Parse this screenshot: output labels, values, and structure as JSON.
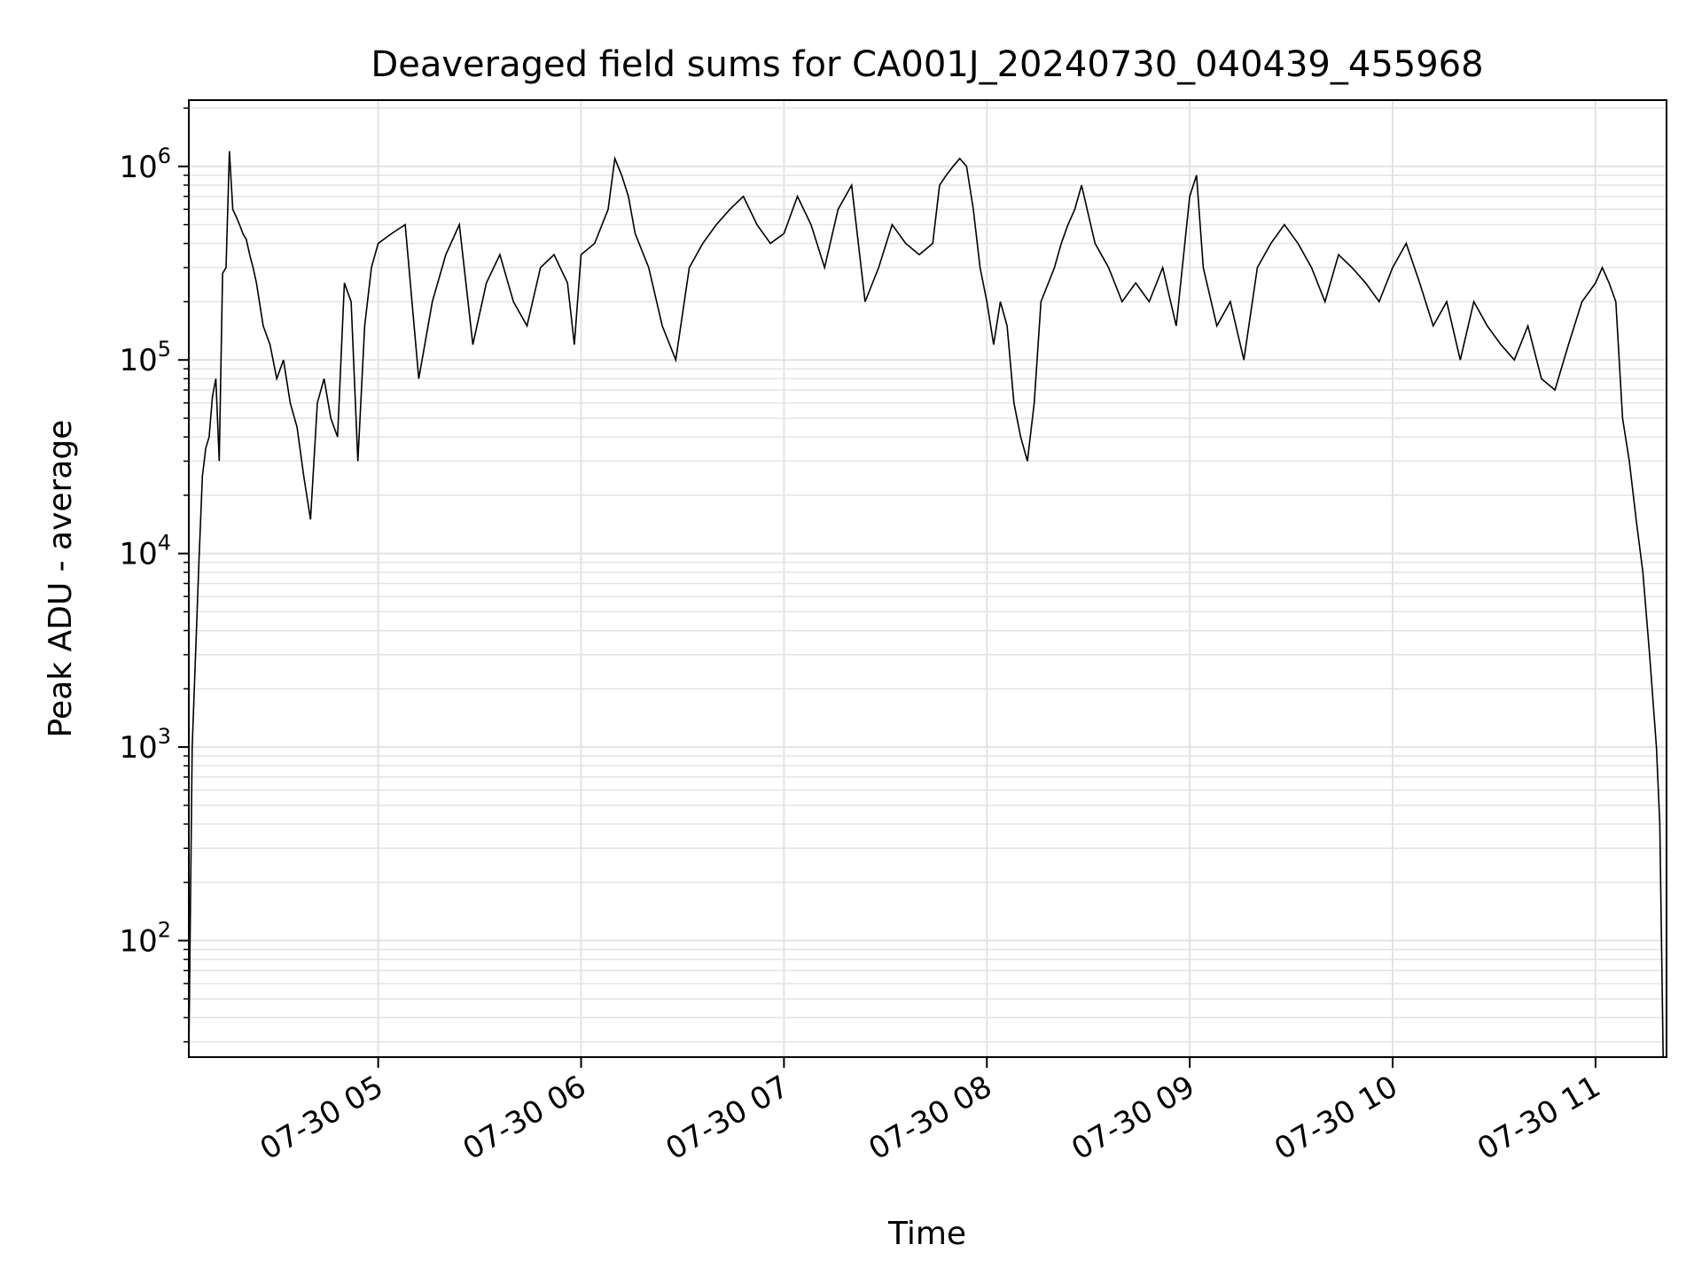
{
  "chart_data": {
    "type": "line",
    "title": "Deaveraged field sums for CA001J_20240730_040439_455968",
    "xlabel": "Time",
    "ylabel": "Peak ADU - average",
    "yscale": "log",
    "ylim": [
      25,
      2200000
    ],
    "xlim": [
      "07-30 04:04",
      "07-30 11:21"
    ],
    "grid": true,
    "grid_minor_y": true,
    "line_color": "#000000",
    "grid_color": "#e3e3e3",
    "x_ticks": [
      {
        "label": "07-30 05",
        "value": "07-30 05:00"
      },
      {
        "label": "07-30 06",
        "value": "07-30 06:00"
      },
      {
        "label": "07-30 07",
        "value": "07-30 07:00"
      },
      {
        "label": "07-30 08",
        "value": "07-30 08:00"
      },
      {
        "label": "07-30 09",
        "value": "07-30 09:00"
      },
      {
        "label": "07-30 10",
        "value": "07-30 10:00"
      },
      {
        "label": "07-30 11",
        "value": "07-30 11:00"
      }
    ],
    "y_ticks": [
      {
        "base": "10",
        "exp": "2",
        "value": 100
      },
      {
        "base": "10",
        "exp": "3",
        "value": 1000
      },
      {
        "base": "10",
        "exp": "4",
        "value": 10000
      },
      {
        "base": "10",
        "exp": "5",
        "value": 100000
      },
      {
        "base": "10",
        "exp": "6",
        "value": 1000000
      }
    ],
    "series": [
      {
        "x": [
          "07-30 04:04",
          "07-30 04:05",
          "07-30 04:06",
          "07-30 04:07",
          "07-30 04:08",
          "07-30 04:09",
          "07-30 04:10",
          "07-30 04:11",
          "07-30 04:12",
          "07-30 04:13",
          "07-30 04:14",
          "07-30 04:15",
          "07-30 04:16",
          "07-30 04:17",
          "07-30 04:18",
          "07-30 04:19",
          "07-30 04:20",
          "07-30 04:21",
          "07-30 04:22",
          "07-30 04:23",
          "07-30 04:24",
          "07-30 04:26",
          "07-30 04:28",
          "07-30 04:30",
          "07-30 04:32",
          "07-30 04:34",
          "07-30 04:36",
          "07-30 04:38",
          "07-30 04:40",
          "07-30 04:42",
          "07-30 04:44",
          "07-30 04:46",
          "07-30 04:48",
          "07-30 04:50",
          "07-30 04:52",
          "07-30 04:54",
          "07-30 04:56",
          "07-30 04:58",
          "07-30 05:00",
          "07-30 05:04",
          "07-30 05:08",
          "07-30 05:12",
          "07-30 05:16",
          "07-30 05:20",
          "07-30 05:24",
          "07-30 05:28",
          "07-30 05:32",
          "07-30 05:36",
          "07-30 05:40",
          "07-30 05:44",
          "07-30 05:48",
          "07-30 05:52",
          "07-30 05:56",
          "07-30 05:58",
          "07-30 06:00",
          "07-30 06:04",
          "07-30 06:08",
          "07-30 06:10",
          "07-30 06:12",
          "07-30 06:14",
          "07-30 06:16",
          "07-30 06:20",
          "07-30 06:24",
          "07-30 06:28",
          "07-30 06:32",
          "07-30 06:36",
          "07-30 06:40",
          "07-30 06:44",
          "07-30 06:48",
          "07-30 06:52",
          "07-30 06:56",
          "07-30 07:00",
          "07-30 07:04",
          "07-30 07:08",
          "07-30 07:12",
          "07-30 07:16",
          "07-30 07:20",
          "07-30 07:24",
          "07-30 07:28",
          "07-30 07:32",
          "07-30 07:36",
          "07-30 07:40",
          "07-30 07:44",
          "07-30 07:46",
          "07-30 07:48",
          "07-30 07:50",
          "07-30 07:52",
          "07-30 07:54",
          "07-30 07:56",
          "07-30 07:58",
          "07-30 08:00",
          "07-30 08:02",
          "07-30 08:04",
          "07-30 08:06",
          "07-30 08:08",
          "07-30 08:10",
          "07-30 08:12",
          "07-30 08:14",
          "07-30 08:16",
          "07-30 08:20",
          "07-30 08:22",
          "07-30 08:24",
          "07-30 08:26",
          "07-30 08:28",
          "07-30 08:32",
          "07-30 08:36",
          "07-30 08:40",
          "07-30 08:44",
          "07-30 08:48",
          "07-30 08:52",
          "07-30 08:56",
          "07-30 09:00",
          "07-30 09:02",
          "07-30 09:04",
          "07-30 09:08",
          "07-30 09:12",
          "07-30 09:16",
          "07-30 09:20",
          "07-30 09:24",
          "07-30 09:28",
          "07-30 09:32",
          "07-30 09:36",
          "07-30 09:40",
          "07-30 09:44",
          "07-30 09:48",
          "07-30 09:52",
          "07-30 09:56",
          "07-30 10:00",
          "07-30 10:04",
          "07-30 10:08",
          "07-30 10:12",
          "07-30 10:16",
          "07-30 10:20",
          "07-30 10:24",
          "07-30 10:28",
          "07-30 10:32",
          "07-30 10:36",
          "07-30 10:40",
          "07-30 10:44",
          "07-30 10:48",
          "07-30 10:52",
          "07-30 10:56",
          "07-30 11:00",
          "07-30 11:02",
          "07-30 11:04",
          "07-30 11:06",
          "07-30 11:08",
          "07-30 11:10",
          "07-30 11:12",
          "07-30 11:14",
          "07-30 11:16",
          "07-30 11:18",
          "07-30 11:19",
          "07-30 11:20"
        ],
        "y": [
          25,
          1000,
          3000,
          9000,
          25000,
          35000,
          40000,
          65000,
          80000,
          30000,
          280000,
          300000,
          1200000,
          600000,
          550000,
          500000,
          450000,
          420000,
          350000,
          300000,
          250000,
          150000,
          120000,
          80000,
          100000,
          60000,
          45000,
          25000,
          15000,
          60000,
          80000,
          50000,
          40000,
          250000,
          200000,
          30000,
          150000,
          300000,
          400000,
          450000,
          500000,
          80000,
          200000,
          350000,
          500000,
          120000,
          250000,
          350000,
          200000,
          150000,
          300000,
          350000,
          250000,
          120000,
          350000,
          400000,
          600000,
          1100000,
          900000,
          700000,
          450000,
          300000,
          150000,
          100000,
          300000,
          400000,
          500000,
          600000,
          700000,
          500000,
          400000,
          450000,
          700000,
          500000,
          300000,
          600000,
          800000,
          200000,
          300000,
          500000,
          400000,
          350000,
          400000,
          800000,
          900000,
          1000000,
          1100000,
          1000000,
          600000,
          300000,
          200000,
          120000,
          200000,
          150000,
          60000,
          40000,
          30000,
          60000,
          200000,
          300000,
          400000,
          500000,
          600000,
          800000,
          400000,
          300000,
          200000,
          250000,
          200000,
          300000,
          150000,
          700000,
          900000,
          300000,
          150000,
          200000,
          100000,
          300000,
          400000,
          500000,
          400000,
          300000,
          200000,
          350000,
          300000,
          250000,
          200000,
          300000,
          400000,
          250000,
          150000,
          200000,
          100000,
          200000,
          150000,
          120000,
          100000,
          150000,
          80000,
          70000,
          120000,
          200000,
          250000,
          300000,
          250000,
          200000,
          50000,
          30000,
          15000,
          8000,
          3000,
          1000,
          400,
          25
        ]
      }
    ]
  }
}
